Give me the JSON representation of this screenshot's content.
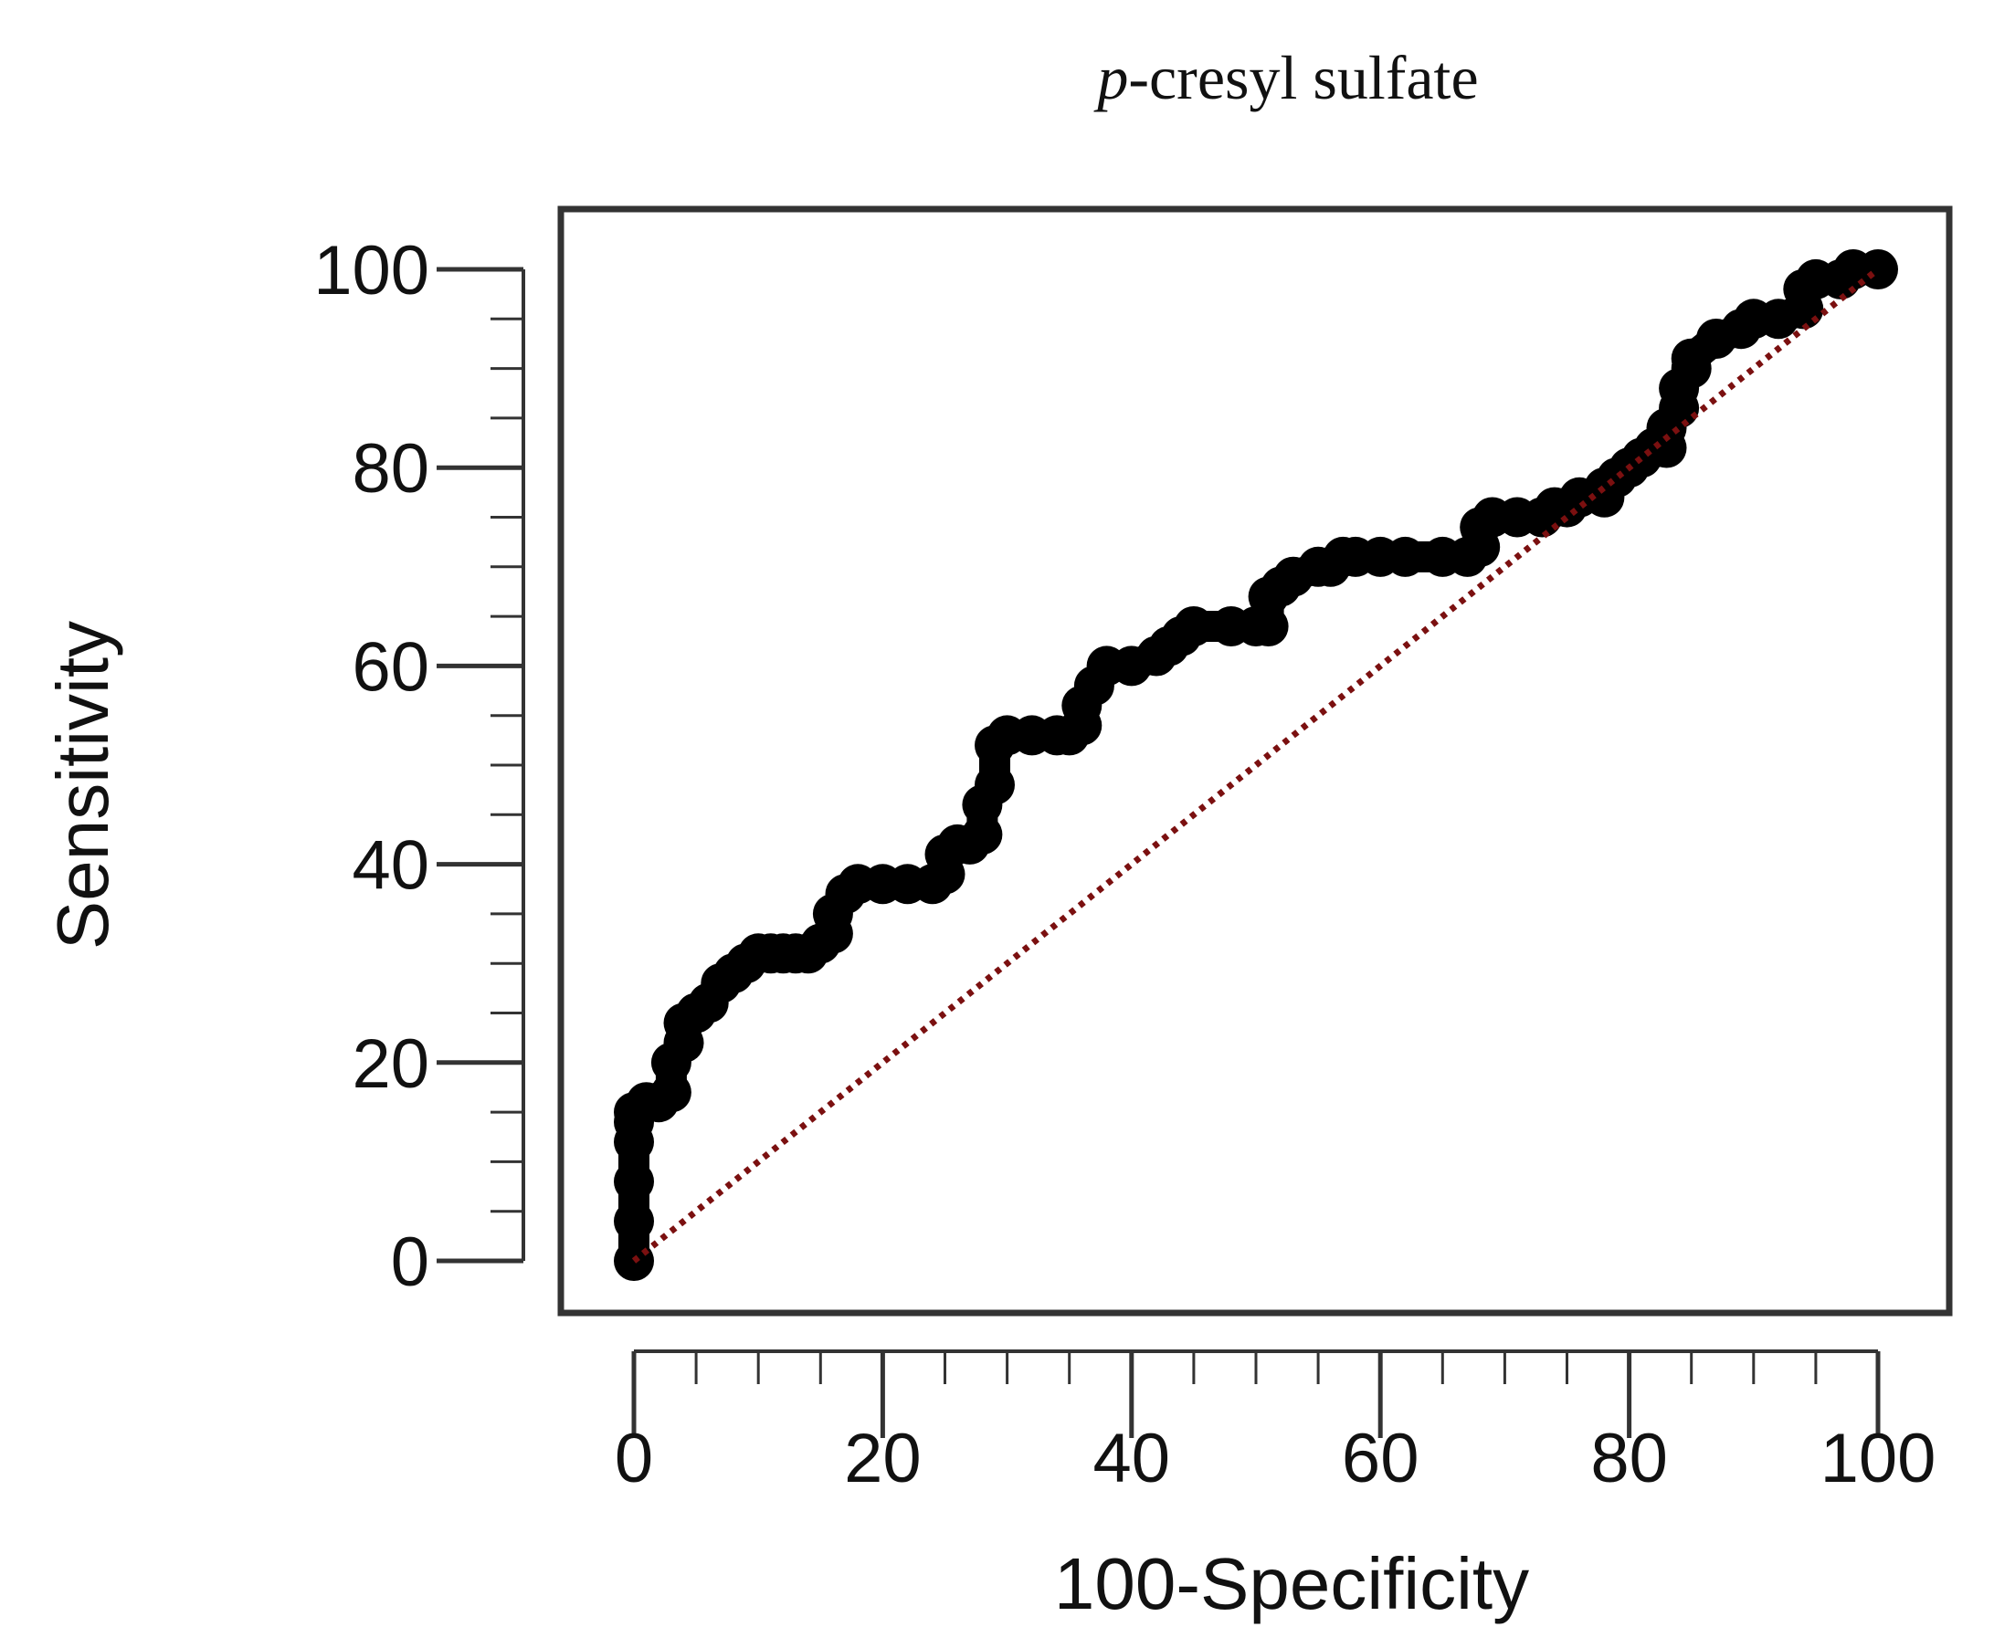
{
  "chart_data": {
    "type": "line",
    "title_italic": "p",
    "title_rest": "-cresyl sulfate",
    "xlabel": "100-Specificity",
    "ylabel": "Sensitivity",
    "xlim": [
      0,
      100
    ],
    "ylim": [
      0,
      100
    ],
    "x_ticks": [
      0,
      20,
      40,
      60,
      80,
      100
    ],
    "x_tick_labels": [
      "0",
      "20",
      "40",
      "60",
      "80",
      "100"
    ],
    "y_ticks": [
      0,
      20,
      40,
      60,
      80,
      100
    ],
    "y_tick_labels": [
      "0",
      "20",
      "40",
      "60",
      "80",
      "100"
    ],
    "x_minor_step": 5,
    "y_minor_step": 5,
    "grid": false,
    "legend": "none",
    "series": [
      {
        "style": "thick-solid",
        "color": "#000000",
        "x": [
          0,
          0,
          0,
          0,
          0,
          0,
          1,
          2,
          3,
          3,
          4,
          4,
          5,
          6,
          7,
          8,
          9,
          10,
          11,
          12,
          13,
          14,
          15,
          16,
          16,
          17,
          18,
          20,
          22,
          24,
          25,
          25,
          26,
          27,
          28,
          28,
          29,
          29,
          30,
          32,
          34,
          35,
          36,
          36,
          37,
          38,
          40,
          42,
          43,
          44,
          45,
          48,
          50,
          51,
          51,
          52,
          53,
          55,
          56,
          57,
          58,
          60,
          62,
          65,
          67,
          68,
          68,
          69,
          71,
          73,
          74,
          75,
          76,
          78,
          78,
          79,
          80,
          81,
          82,
          83,
          83,
          84,
          84,
          85,
          85,
          87,
          89,
          90,
          92,
          94,
          94,
          95,
          97,
          98,
          100
        ],
        "y": [
          0,
          4,
          8,
          12,
          14,
          15,
          16,
          16,
          17,
          20,
          22,
          24,
          25,
          26,
          28,
          29,
          30,
          31,
          31,
          31,
          31,
          31,
          32,
          33,
          35,
          37,
          38,
          38,
          38,
          38,
          39,
          41,
          42,
          42,
          43,
          46,
          48,
          52,
          53,
          53,
          53,
          53,
          54,
          56,
          58,
          60,
          60,
          61,
          62,
          63,
          64,
          64,
          64,
          64,
          67,
          68,
          69,
          70,
          70,
          71,
          71,
          71,
          71,
          71,
          71,
          72,
          74,
          75,
          75,
          75,
          76,
          76,
          77,
          77,
          78,
          79,
          80,
          81,
          82,
          82,
          84,
          86,
          88,
          90,
          91,
          93,
          94,
          95,
          95,
          96,
          98,
          99,
          99,
          100,
          100
        ]
      },
      {
        "style": "dotted-diagonal",
        "color": "#7b1010",
        "x": [
          0,
          100
        ],
        "y": [
          0,
          100
        ]
      }
    ]
  }
}
